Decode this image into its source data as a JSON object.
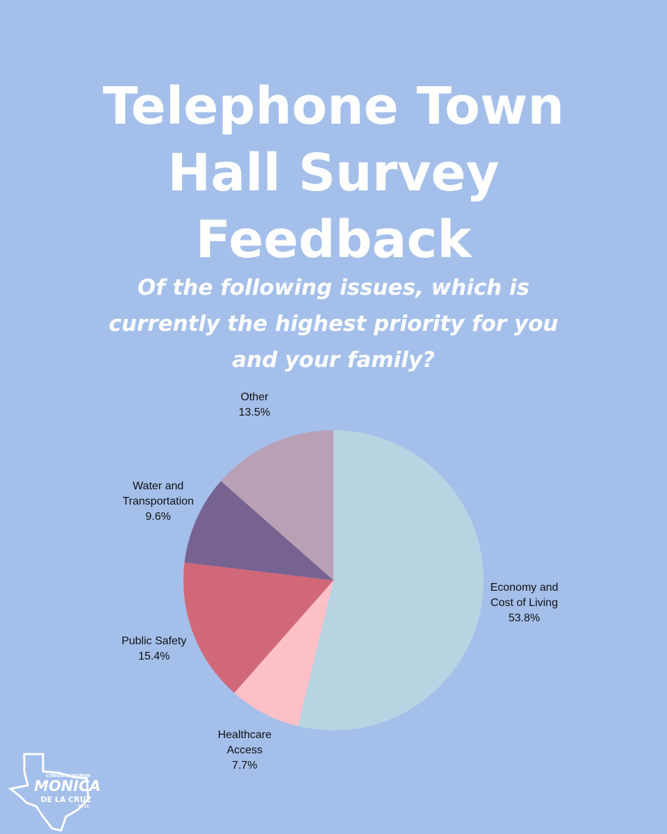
{
  "chart_data": {
    "type": "pie",
    "title": "Telephone Town Hall Survey Feedback",
    "subtitle": "Of the following issues, which is currently the highest priority for you and your family?",
    "categories": [
      "Economy and Cost of Living",
      "Healthcare Access",
      "Public Safety",
      "Water and Transportation",
      "Other"
    ],
    "values": [
      53.8,
      7.7,
      15.4,
      9.6,
      13.5
    ],
    "value_labels": [
      "53.8%",
      "7.7%",
      "15.4%",
      "9.6%",
      "13.5%"
    ],
    "colors": [
      "#b8d4e3",
      "#fdc0c6",
      "#d16878",
      "#766391",
      "#b9a0b4"
    ]
  },
  "logo": {
    "top": "CONGRESSWOMAN",
    "name": "MONICA",
    "surname": "DE LA CRUZ",
    "district": "TX-15"
  }
}
